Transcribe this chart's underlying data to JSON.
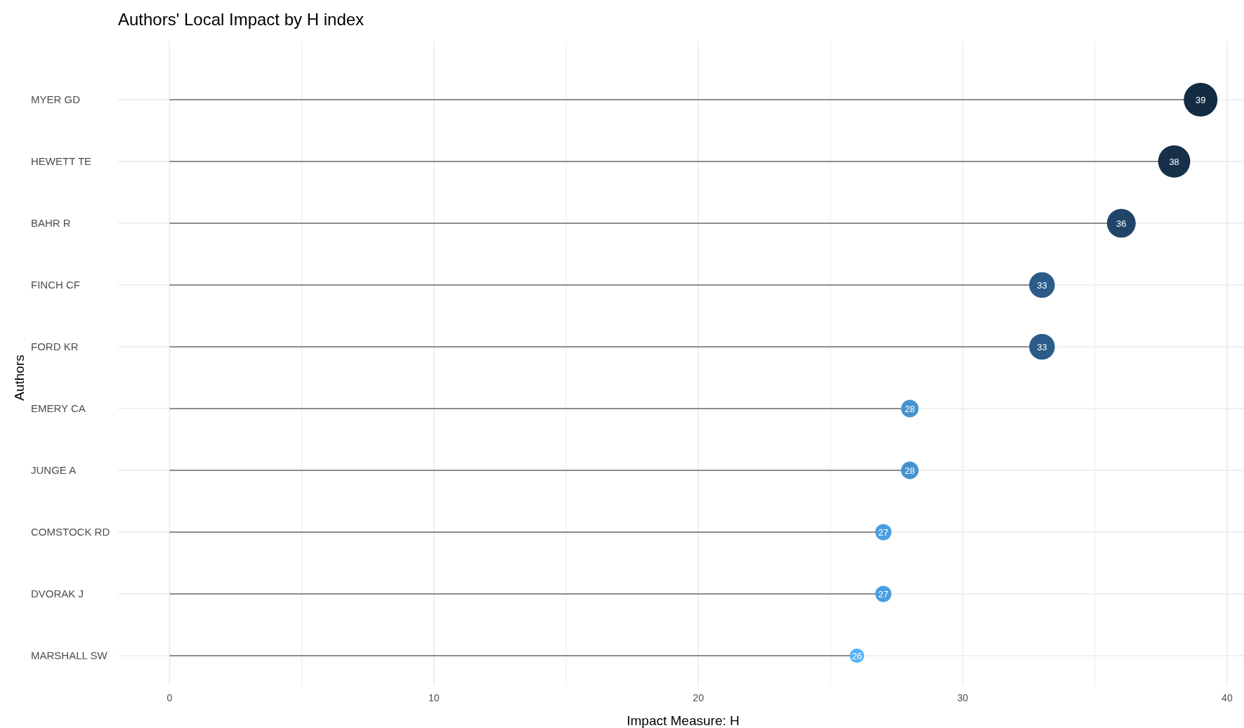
{
  "chart_data": {
    "type": "lollipop",
    "orientation": "horizontal",
    "title": "Authors' Local Impact by H index",
    "xlabel": "Impact Measure: H",
    "ylabel": "Authors",
    "categories": [
      "MYER GD",
      "HEWETT TE",
      "BAHR R",
      "FINCH CF",
      "FORD KR",
      "EMERY CA",
      "JUNGE A",
      "COMSTOCK RD",
      "DVORAK J",
      "MARSHALL SW"
    ],
    "values": [
      39,
      38,
      36,
      33,
      33,
      28,
      28,
      27,
      27,
      26
    ],
    "sizes": [
      1,
      0.91,
      0.73,
      0.58,
      0.58,
      0.27,
      0.27,
      0.23,
      0.23,
      0.18
    ],
    "colors": [
      "#132b43",
      "#16304a",
      "#1f4468",
      "#2a5b89",
      "#2a5b89",
      "#4493d0",
      "#4493d0",
      "#4a9de0",
      "#4a9de0",
      "#56b1f7"
    ],
    "xlim": [
      -1.95,
      40.8
    ],
    "xticks": [
      0,
      {
        "value": 5,
        "label": null
      },
      10,
      {
        "value": 15,
        "label": null
      },
      20,
      {
        "value": 25,
        "label": null
      },
      30,
      {
        "value": 35,
        "label": null
      },
      40
    ],
    "grid": true,
    "data_labels": true
  }
}
